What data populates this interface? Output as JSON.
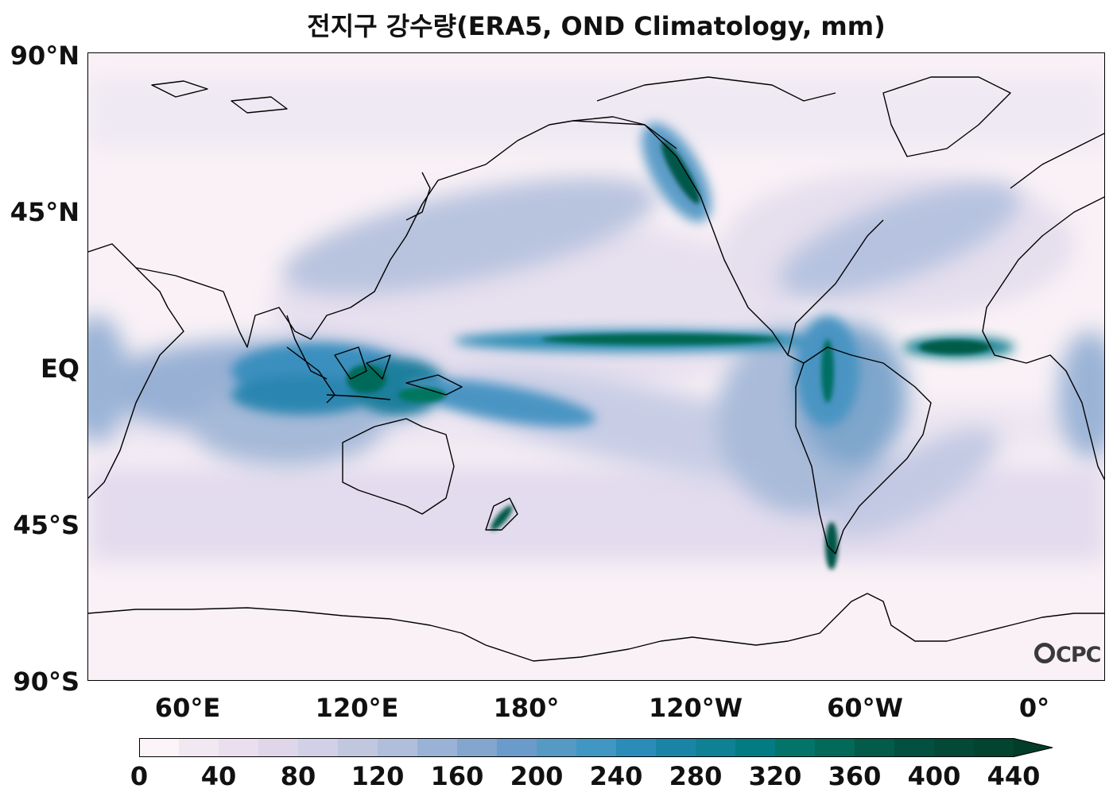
{
  "title": "전지구 강수량(ERA5, OND Climatology, mm)",
  "lat_labels": [
    "90°N",
    "45°N",
    "EQ",
    "45°S",
    "90°S"
  ],
  "lon_labels": [
    "60°E",
    "120°E",
    "180°",
    "120°W",
    "60°W",
    "0°"
  ],
  "colorbar": {
    "ticks": [
      "0",
      "40",
      "80",
      "120",
      "160",
      "200",
      "240",
      "280",
      "320",
      "360",
      "400",
      "440"
    ],
    "colors": [
      "#fbf4f9",
      "#f2e8f1",
      "#e9dfee",
      "#e0d6ea",
      "#d1d0e6",
      "#c2c7e0",
      "#b0bedb",
      "#99b2d6",
      "#82a6ce",
      "#6b9bca",
      "#559ac4",
      "#4097c3",
      "#2b8cb9",
      "#1a84a6",
      "#0e8294",
      "#047a82",
      "#03746a",
      "#036959",
      "#035b4a",
      "#02503f",
      "#024a36",
      "#02442f",
      "#013d28"
    ],
    "extend": "max",
    "unit": "mm"
  },
  "logo": "CPC",
  "colors": {
    "background": "#f9f1f6",
    "coastline": "#000000",
    "wet_max": "#03513f"
  }
}
